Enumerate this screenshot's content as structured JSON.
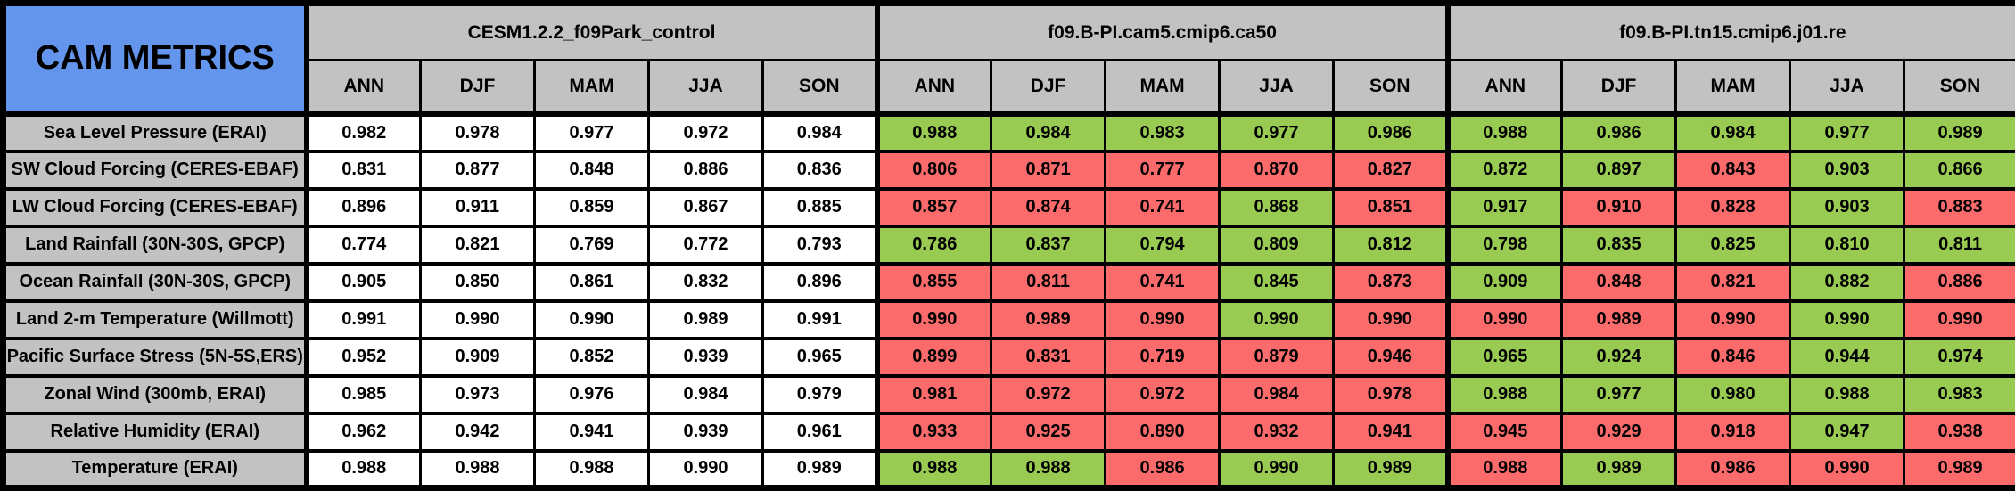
{
  "title": "CAM METRICS",
  "seasons": [
    "ANN",
    "DJF",
    "MAM",
    "JJA",
    "SON"
  ],
  "groups": [
    {
      "name": "CESM1.2.2_f09Park_control"
    },
    {
      "name": "f09.B-PI.cam5.cmip6.ca50"
    },
    {
      "name": "f09.B-PI.tn15.cmip6.j01.re"
    }
  ],
  "colors": {
    "title_blue": "#6495ED",
    "header_gray": "#C2C2C2",
    "better_green": "#99CB53",
    "worse_red": "#FB6B6B",
    "control_white": "#FFFFFF",
    "border_black": "#000000"
  },
  "rows": [
    {
      "label": "Sea Level Pressure (ERAI)",
      "values": [
        "0.982",
        "0.978",
        "0.977",
        "0.972",
        "0.984",
        "0.988",
        "0.984",
        "0.983",
        "0.977",
        "0.986",
        "0.988",
        "0.986",
        "0.984",
        "0.977",
        "0.989"
      ],
      "status": [
        "w",
        "w",
        "w",
        "w",
        "w",
        "g",
        "g",
        "g",
        "g",
        "g",
        "g",
        "g",
        "g",
        "g",
        "g"
      ]
    },
    {
      "label": "SW Cloud Forcing (CERES-EBAF)",
      "values": [
        "0.831",
        "0.877",
        "0.848",
        "0.886",
        "0.836",
        "0.806",
        "0.871",
        "0.777",
        "0.870",
        "0.827",
        "0.872",
        "0.897",
        "0.843",
        "0.903",
        "0.866"
      ],
      "status": [
        "w",
        "w",
        "w",
        "w",
        "w",
        "r",
        "r",
        "r",
        "r",
        "r",
        "g",
        "g",
        "r",
        "g",
        "g"
      ]
    },
    {
      "label": "LW Cloud Forcing (CERES-EBAF)",
      "values": [
        "0.896",
        "0.911",
        "0.859",
        "0.867",
        "0.885",
        "0.857",
        "0.874",
        "0.741",
        "0.868",
        "0.851",
        "0.917",
        "0.910",
        "0.828",
        "0.903",
        "0.883"
      ],
      "status": [
        "w",
        "w",
        "w",
        "w",
        "w",
        "r",
        "r",
        "r",
        "g",
        "r",
        "g",
        "r",
        "r",
        "g",
        "r"
      ]
    },
    {
      "label": "Land Rainfall (30N-30S, GPCP)",
      "values": [
        "0.774",
        "0.821",
        "0.769",
        "0.772",
        "0.793",
        "0.786",
        "0.837",
        "0.794",
        "0.809",
        "0.812",
        "0.798",
        "0.835",
        "0.825",
        "0.810",
        "0.811"
      ],
      "status": [
        "w",
        "w",
        "w",
        "w",
        "w",
        "g",
        "g",
        "g",
        "g",
        "g",
        "g",
        "g",
        "g",
        "g",
        "g"
      ]
    },
    {
      "label": "Ocean Rainfall (30N-30S, GPCP)",
      "values": [
        "0.905",
        "0.850",
        "0.861",
        "0.832",
        "0.896",
        "0.855",
        "0.811",
        "0.741",
        "0.845",
        "0.873",
        "0.909",
        "0.848",
        "0.821",
        "0.882",
        "0.886"
      ],
      "status": [
        "w",
        "w",
        "w",
        "w",
        "w",
        "r",
        "r",
        "r",
        "g",
        "r",
        "g",
        "r",
        "r",
        "g",
        "r"
      ]
    },
    {
      "label": "Land 2-m Temperature (Willmott)",
      "values": [
        "0.991",
        "0.990",
        "0.990",
        "0.989",
        "0.991",
        "0.990",
        "0.989",
        "0.990",
        "0.990",
        "0.990",
        "0.990",
        "0.989",
        "0.990",
        "0.990",
        "0.990"
      ],
      "status": [
        "w",
        "w",
        "w",
        "w",
        "w",
        "r",
        "r",
        "r",
        "g",
        "r",
        "r",
        "r",
        "r",
        "g",
        "r"
      ]
    },
    {
      "label": "Pacific Surface Stress (5N-5S,ERS)",
      "values": [
        "0.952",
        "0.909",
        "0.852",
        "0.939",
        "0.965",
        "0.899",
        "0.831",
        "0.719",
        "0.879",
        "0.946",
        "0.965",
        "0.924",
        "0.846",
        "0.944",
        "0.974"
      ],
      "status": [
        "w",
        "w",
        "w",
        "w",
        "w",
        "r",
        "r",
        "r",
        "r",
        "r",
        "g",
        "g",
        "r",
        "g",
        "g"
      ]
    },
    {
      "label": "Zonal Wind (300mb, ERAI)",
      "values": [
        "0.985",
        "0.973",
        "0.976",
        "0.984",
        "0.979",
        "0.981",
        "0.972",
        "0.972",
        "0.984",
        "0.978",
        "0.988",
        "0.977",
        "0.980",
        "0.988",
        "0.983"
      ],
      "status": [
        "w",
        "w",
        "w",
        "w",
        "w",
        "r",
        "r",
        "r",
        "r",
        "r",
        "g",
        "g",
        "g",
        "g",
        "g"
      ]
    },
    {
      "label": "Relative Humidity (ERAI)",
      "values": [
        "0.962",
        "0.942",
        "0.941",
        "0.939",
        "0.961",
        "0.933",
        "0.925",
        "0.890",
        "0.932",
        "0.941",
        "0.945",
        "0.929",
        "0.918",
        "0.947",
        "0.938"
      ],
      "status": [
        "w",
        "w",
        "w",
        "w",
        "w",
        "r",
        "r",
        "r",
        "r",
        "r",
        "r",
        "r",
        "r",
        "g",
        "r"
      ]
    },
    {
      "label": "Temperature (ERAI)",
      "values": [
        "0.988",
        "0.988",
        "0.988",
        "0.990",
        "0.989",
        "0.988",
        "0.988",
        "0.986",
        "0.990",
        "0.989",
        "0.988",
        "0.989",
        "0.986",
        "0.990",
        "0.989"
      ],
      "status": [
        "w",
        "w",
        "w",
        "w",
        "w",
        "g",
        "g",
        "r",
        "g",
        "g",
        "r",
        "g",
        "r",
        "r",
        "r"
      ]
    }
  ],
  "chart_data": {
    "type": "table",
    "title": "CAM METRICS",
    "metrics": [
      "Sea Level Pressure (ERAI)",
      "SW Cloud Forcing (CERES-EBAF)",
      "LW Cloud Forcing (CERES-EBAF)",
      "Land Rainfall (30N-30S, GPCP)",
      "Ocean Rainfall (30N-30S, GPCP)",
      "Land 2-m Temperature (Willmott)",
      "Pacific Surface Stress (5N-5S,ERS)",
      "Zonal Wind (300mb, ERAI)",
      "Relative Humidity (ERAI)",
      "Temperature (ERAI)"
    ],
    "season_columns": [
      "ANN",
      "DJF",
      "MAM",
      "JJA",
      "SON"
    ],
    "models": [
      {
        "name": "CESM1.2.2_f09Park_control",
        "cell_color": "white",
        "values": [
          [
            0.982,
            0.978,
            0.977,
            0.972,
            0.984
          ],
          [
            0.831,
            0.877,
            0.848,
            0.886,
            0.836
          ],
          [
            0.896,
            0.911,
            0.859,
            0.867,
            0.885
          ],
          [
            0.774,
            0.821,
            0.769,
            0.772,
            0.793
          ],
          [
            0.905,
            0.85,
            0.861,
            0.832,
            0.896
          ],
          [
            0.991,
            0.99,
            0.99,
            0.989,
            0.991
          ],
          [
            0.952,
            0.909,
            0.852,
            0.939,
            0.965
          ],
          [
            0.985,
            0.973,
            0.976,
            0.984,
            0.979
          ],
          [
            0.962,
            0.942,
            0.941,
            0.939,
            0.961
          ],
          [
            0.988,
            0.988,
            0.988,
            0.99,
            0.989
          ]
        ]
      },
      {
        "name": "f09.B-PI.cam5.cmip6.ca50",
        "values": [
          [
            0.988,
            0.984,
            0.983,
            0.977,
            0.986
          ],
          [
            0.806,
            0.871,
            0.777,
            0.87,
            0.827
          ],
          [
            0.857,
            0.874,
            0.741,
            0.868,
            0.851
          ],
          [
            0.786,
            0.837,
            0.794,
            0.809,
            0.812
          ],
          [
            0.855,
            0.811,
            0.741,
            0.845,
            0.873
          ],
          [
            0.99,
            0.989,
            0.99,
            0.99,
            0.99
          ],
          [
            0.899,
            0.831,
            0.719,
            0.879,
            0.946
          ],
          [
            0.981,
            0.972,
            0.972,
            0.984,
            0.978
          ],
          [
            0.933,
            0.925,
            0.89,
            0.932,
            0.941
          ],
          [
            0.988,
            0.988,
            0.986,
            0.99,
            0.989
          ]
        ],
        "cell_colors": [
          [
            "green",
            "green",
            "green",
            "green",
            "green"
          ],
          [
            "red",
            "red",
            "red",
            "red",
            "red"
          ],
          [
            "red",
            "red",
            "red",
            "green",
            "red"
          ],
          [
            "green",
            "green",
            "green",
            "green",
            "green"
          ],
          [
            "red",
            "red",
            "red",
            "green",
            "red"
          ],
          [
            "red",
            "red",
            "red",
            "green",
            "red"
          ],
          [
            "red",
            "red",
            "red",
            "red",
            "red"
          ],
          [
            "red",
            "red",
            "red",
            "red",
            "red"
          ],
          [
            "red",
            "red",
            "red",
            "red",
            "red"
          ],
          [
            "green",
            "green",
            "red",
            "green",
            "green"
          ]
        ]
      },
      {
        "name": "f09.B-PI.tn15.cmip6.j01.re",
        "values": [
          [
            0.988,
            0.986,
            0.984,
            0.977,
            0.989
          ],
          [
            0.872,
            0.897,
            0.843,
            0.903,
            0.866
          ],
          [
            0.917,
            0.91,
            0.828,
            0.903,
            0.883
          ],
          [
            0.798,
            0.835,
            0.825,
            0.81,
            0.811
          ],
          [
            0.909,
            0.848,
            0.821,
            0.882,
            0.886
          ],
          [
            0.99,
            0.989,
            0.99,
            0.99,
            0.99
          ],
          [
            0.965,
            0.924,
            0.846,
            0.944,
            0.974
          ],
          [
            0.988,
            0.977,
            0.98,
            0.988,
            0.983
          ],
          [
            0.945,
            0.929,
            0.918,
            0.947,
            0.938
          ],
          [
            0.988,
            0.989,
            0.986,
            0.99,
            0.989
          ]
        ],
        "cell_colors": [
          [
            "green",
            "green",
            "green",
            "green",
            "green"
          ],
          [
            "green",
            "green",
            "red",
            "green",
            "green"
          ],
          [
            "green",
            "red",
            "red",
            "green",
            "red"
          ],
          [
            "green",
            "green",
            "green",
            "green",
            "green"
          ],
          [
            "green",
            "red",
            "red",
            "green",
            "red"
          ],
          [
            "red",
            "red",
            "red",
            "green",
            "red"
          ],
          [
            "green",
            "green",
            "red",
            "green",
            "green"
          ],
          [
            "green",
            "green",
            "green",
            "green",
            "green"
          ],
          [
            "red",
            "red",
            "red",
            "green",
            "red"
          ],
          [
            "red",
            "green",
            "red",
            "red",
            "red"
          ]
        ]
      }
    ],
    "layout": {
      "grid": "full black cell borders",
      "legend": "none visible",
      "color_coding": "green = better than control, red = worse than control, white = control run"
    }
  }
}
